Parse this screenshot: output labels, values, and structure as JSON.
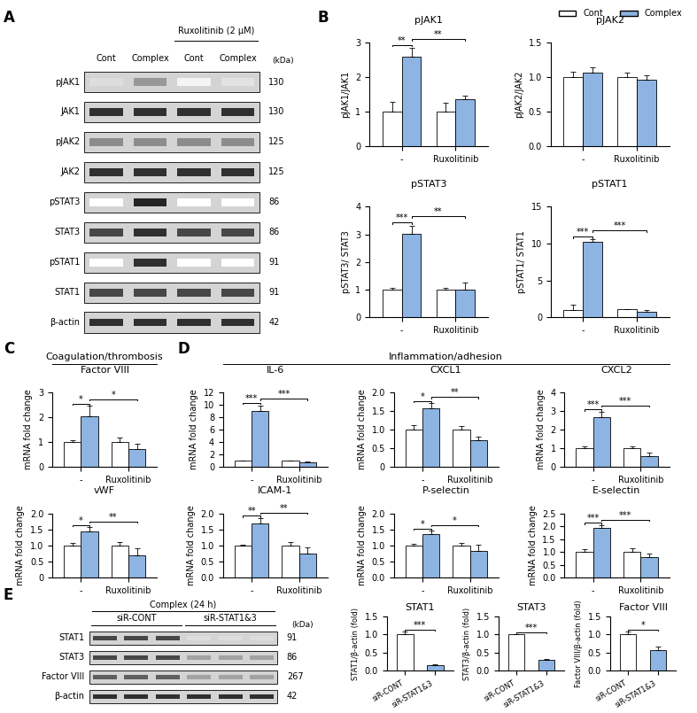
{
  "panel_labels": [
    "A",
    "B",
    "C",
    "D",
    "E"
  ],
  "section_headers": {
    "C": "Coagulation/thrombosis",
    "D": "Inflammation/adhesion"
  },
  "blots": [
    {
      "panel": "A",
      "lanes": [
        "Cont",
        "Complex",
        "Cont",
        "Complex"
      ],
      "lane_groups": [
        {
          "label": "Ruxolitinib (2 μM)",
          "lanes": [
            2,
            3
          ]
        }
      ],
      "unit": "(kDa)",
      "rows": [
        {
          "name": "pJAK1",
          "kDa": 130
        },
        {
          "name": "JAK1",
          "kDa": 130
        },
        {
          "name": "pJAK2",
          "kDa": 125
        },
        {
          "name": "JAK2",
          "kDa": 125
        },
        {
          "name": "pSTAT3",
          "kDa": 86
        },
        {
          "name": "STAT3",
          "kDa": 86
        },
        {
          "name": "pSTAT1",
          "kDa": 91
        },
        {
          "name": "STAT1",
          "kDa": 91
        },
        {
          "name": "β-actin",
          "kDa": 42
        }
      ]
    },
    {
      "panel": "E",
      "title": "Complex (24 h)",
      "lanes": [
        "",
        "",
        "",
        "",
        "",
        ""
      ],
      "lane_groups": [
        {
          "label": "siR-CONT",
          "lanes": [
            0,
            1,
            2
          ]
        },
        {
          "label": "siR-STAT1&3",
          "lanes": [
            3,
            4,
            5
          ]
        }
      ],
      "unit": "(kDa)",
      "rows": [
        {
          "name": "STAT1",
          "kDa": 91
        },
        {
          "name": "STAT3",
          "kDa": 86
        },
        {
          "name": "Factor VIII",
          "kDa": 267
        },
        {
          "name": "β-actin",
          "kDa": 42
        }
      ]
    }
  ],
  "chart_data": [
    {
      "type": "bar",
      "title": "pJAK1",
      "y_label": "pJAK1/JAK1",
      "categories": [
        "-",
        "Ruxolitinib"
      ],
      "series": [
        {
          "name": "Cont",
          "color": "#ffffff",
          "values": [
            1.0,
            1.0
          ],
          "errors": [
            0.28,
            0.25
          ]
        },
        {
          "name": "Complex",
          "color": "#8db4e2",
          "values": [
            2.6,
            1.35
          ],
          "errors": [
            0.25,
            0.12
          ]
        }
      ],
      "ylim": [
        0,
        3
      ],
      "yticks": [
        0,
        1,
        2,
        3
      ],
      "significance": [
        {
          "label": "**",
          "between": [
            [
              0,
              0
            ],
            [
              0,
              1
            ]
          ]
        },
        {
          "label": "**",
          "between": [
            [
              0,
              1
            ],
            [
              1,
              1
            ]
          ]
        }
      ]
    },
    {
      "type": "bar",
      "title": "pJAK2",
      "y_label": "pJAK2/JAK2",
      "categories": [
        "-",
        "Ruxolitinib"
      ],
      "series": [
        {
          "name": "Cont",
          "color": "#ffffff",
          "values": [
            1.0,
            1.0
          ],
          "errors": [
            0.08,
            0.07
          ]
        },
        {
          "name": "Complex",
          "color": "#8db4e2",
          "values": [
            1.07,
            0.96
          ],
          "errors": [
            0.08,
            0.07
          ]
        }
      ],
      "ylim": [
        0,
        1.5
      ],
      "yticks": [
        {
          "value": 0,
          "label": "0.0"
        },
        0.5,
        {
          "value": 1,
          "label": "1.0"
        },
        1.5
      ],
      "legend": "upper right"
    },
    {
      "type": "bar",
      "title": "pSTAT3",
      "y_label": "pSTAT3/ STAT3",
      "categories": [
        "-",
        "Ruxolitinib"
      ],
      "series": [
        {
          "name": "Cont",
          "color": "#ffffff",
          "values": [
            1.0,
            1.0
          ],
          "errors": [
            0.08,
            0.05
          ]
        },
        {
          "name": "Complex",
          "color": "#8db4e2",
          "values": [
            3.02,
            1.0
          ],
          "errors": [
            0.3,
            0.25
          ]
        }
      ],
      "ylim": [
        0,
        4
      ],
      "yticks": [
        0,
        1,
        2,
        3,
        4
      ],
      "significance": [
        {
          "label": "***",
          "between": [
            [
              0,
              0
            ],
            [
              0,
              1
            ]
          ]
        },
        {
          "label": "**",
          "between": [
            [
              0,
              1
            ],
            [
              1,
              1
            ]
          ]
        }
      ]
    },
    {
      "type": "bar",
      "title": "pSTAT1",
      "y_label": "pSTAT1/ STAT1",
      "categories": [
        "-",
        "Ruxolitinib"
      ],
      "series": [
        {
          "name": "Cont",
          "color": "#ffffff",
          "values": [
            1.0,
            1.05
          ],
          "errors": [
            0.7,
            0.1
          ]
        },
        {
          "name": "Complex",
          "color": "#8db4e2",
          "values": [
            10.3,
            0.8
          ],
          "errors": [
            0.25,
            0.2
          ]
        }
      ],
      "ylim": [
        0,
        15
      ],
      "yticks": [
        0,
        5,
        10,
        15
      ],
      "significance": [
        {
          "label": "***",
          "between": [
            [
              0,
              0
            ],
            [
              0,
              1
            ]
          ]
        },
        {
          "label": "***",
          "between": [
            [
              0,
              1
            ],
            [
              1,
              1
            ]
          ]
        }
      ]
    },
    {
      "type": "bar",
      "title": "Factor VIII",
      "y_label": "mRNA fold change",
      "categories": [
        "-",
        "Ruxolitinib"
      ],
      "series": [
        {
          "name": "Cont",
          "color": "#ffffff",
          "values": [
            1.0,
            1.0
          ],
          "errors": [
            0.08,
            0.18
          ]
        },
        {
          "name": "Complex",
          "color": "#8db4e2",
          "values": [
            2.05,
            0.72
          ],
          "errors": [
            0.4,
            0.2
          ]
        }
      ],
      "ylim": [
        0,
        3
      ],
      "yticks": [
        0,
        1,
        2,
        3
      ],
      "significance": [
        {
          "label": "*",
          "between": [
            [
              0,
              0
            ],
            [
              0,
              1
            ]
          ]
        },
        {
          "label": "*",
          "between": [
            [
              0,
              1
            ],
            [
              1,
              1
            ]
          ]
        }
      ]
    },
    {
      "type": "bar",
      "title": "vWF",
      "y_label": "mRNA fold change",
      "categories": [
        "-",
        "Ruxolitinib"
      ],
      "series": [
        {
          "name": "Cont",
          "color": "#ffffff",
          "values": [
            1.0,
            1.0
          ],
          "errors": [
            0.07,
            0.1
          ]
        },
        {
          "name": "Complex",
          "color": "#8db4e2",
          "values": [
            1.45,
            0.7
          ],
          "errors": [
            0.12,
            0.2
          ]
        }
      ],
      "ylim": [
        0,
        2
      ],
      "yticks": [
        0,
        0.5,
        {
          "value": 1,
          "label": "1.0"
        },
        1.5,
        {
          "value": 2,
          "label": "2.0"
        }
      ],
      "significance": [
        {
          "label": "*",
          "between": [
            [
              0,
              0
            ],
            [
              0,
              1
            ]
          ]
        },
        {
          "label": "**",
          "between": [
            [
              0,
              1
            ],
            [
              1,
              1
            ]
          ]
        }
      ]
    },
    {
      "type": "bar",
      "title": "IL-6",
      "y_label": "mRNA fold change",
      "categories": [
        "-",
        "Ruxolitinib"
      ],
      "series": [
        {
          "name": "Cont",
          "color": "#ffffff",
          "values": [
            1.0,
            1.0
          ],
          "errors": [
            0.05,
            0.1
          ]
        },
        {
          "name": "Complex",
          "color": "#8db4e2",
          "values": [
            9.0,
            0.75
          ],
          "errors": [
            0.9,
            0.1
          ]
        }
      ],
      "ylim": [
        0,
        12
      ],
      "yticks": [
        0,
        2,
        4,
        6,
        8,
        10,
        12
      ],
      "significance": [
        {
          "label": "***",
          "between": [
            [
              0,
              0
            ],
            [
              0,
              1
            ]
          ]
        },
        {
          "label": "***",
          "between": [
            [
              0,
              1
            ],
            [
              1,
              1
            ]
          ]
        }
      ]
    },
    {
      "type": "bar",
      "title": "CXCL1",
      "y_label": "mRNA fold change",
      "categories": [
        "-",
        "Ruxolitinib"
      ],
      "series": [
        {
          "name": "Cont",
          "color": "#ffffff",
          "values": [
            1.0,
            1.0
          ],
          "errors": [
            0.12,
            0.1
          ]
        },
        {
          "name": "Complex",
          "color": "#8db4e2",
          "values": [
            1.58,
            0.72
          ],
          "errors": [
            0.12,
            0.08
          ]
        }
      ],
      "ylim": [
        0,
        2
      ],
      "yticks": [
        0,
        0.5,
        {
          "value": 1,
          "label": "1.0"
        },
        1.5,
        {
          "value": 2,
          "label": "2.0"
        }
      ],
      "significance": [
        {
          "label": "*",
          "between": [
            [
              0,
              0
            ],
            [
              0,
              1
            ]
          ]
        },
        {
          "label": "**",
          "between": [
            [
              0,
              1
            ],
            [
              1,
              1
            ]
          ]
        }
      ]
    },
    {
      "type": "bar",
      "title": "CXCL2",
      "y_label": "mRNA fold change",
      "categories": [
        "-",
        "Ruxolitinib"
      ],
      "series": [
        {
          "name": "Cont",
          "color": "#ffffff",
          "values": [
            1.0,
            1.0
          ],
          "errors": [
            0.1,
            0.08
          ]
        },
        {
          "name": "Complex",
          "color": "#8db4e2",
          "values": [
            2.65,
            0.6
          ],
          "errors": [
            0.3,
            0.15
          ]
        }
      ],
      "ylim": [
        0,
        4
      ],
      "yticks": [
        0,
        1,
        2,
        3,
        4
      ],
      "significance": [
        {
          "label": "***",
          "between": [
            [
              0,
              0
            ],
            [
              0,
              1
            ]
          ]
        },
        {
          "label": "***",
          "between": [
            [
              0,
              1
            ],
            [
              1,
              1
            ]
          ]
        }
      ]
    },
    {
      "type": "bar",
      "title": "ICAM-1",
      "y_label": "mRNA fold change",
      "categories": [
        "-",
        "Ruxolitinib"
      ],
      "series": [
        {
          "name": "Cont",
          "color": "#ffffff",
          "values": [
            1.0,
            1.0
          ],
          "errors": [
            0.03,
            0.1
          ]
        },
        {
          "name": "Complex",
          "color": "#8db4e2",
          "values": [
            1.68,
            0.75
          ],
          "errors": [
            0.18,
            0.2
          ]
        }
      ],
      "ylim": [
        0,
        2
      ],
      "yticks": [
        {
          "value": 0,
          "label": "0.0"
        },
        0.5,
        {
          "value": 1,
          "label": "1.0"
        },
        1.5,
        {
          "value": 2,
          "label": "2.0"
        }
      ],
      "significance": [
        {
          "label": "**",
          "between": [
            [
              0,
              0
            ],
            [
              0,
              1
            ]
          ]
        },
        {
          "label": "**",
          "between": [
            [
              0,
              1
            ],
            [
              1,
              1
            ]
          ]
        }
      ]
    },
    {
      "type": "bar",
      "title": "P-selectin",
      "y_label": "mRNA fold change",
      "categories": [
        "-",
        "Ruxolitinib"
      ],
      "series": [
        {
          "name": "Cont",
          "color": "#ffffff",
          "values": [
            1.0,
            1.0
          ],
          "errors": [
            0.05,
            0.08
          ]
        },
        {
          "name": "Complex",
          "color": "#8db4e2",
          "values": [
            1.35,
            0.83
          ],
          "errors": [
            0.12,
            0.18
          ]
        }
      ],
      "ylim": [
        0,
        2
      ],
      "yticks": [
        {
          "value": 0,
          "label": "0.0"
        },
        0.5,
        {
          "value": 1,
          "label": "1.0"
        },
        1.5,
        {
          "value": 2,
          "label": "2.0"
        }
      ],
      "significance": [
        {
          "label": "*",
          "between": [
            [
              0,
              0
            ],
            [
              0,
              1
            ]
          ]
        },
        {
          "label": "*",
          "between": [
            [
              0,
              1
            ],
            [
              1,
              1
            ]
          ]
        }
      ]
    },
    {
      "type": "bar",
      "title": "E-selectin",
      "y_label": "mRNA fold change",
      "categories": [
        "-",
        "Ruxolitinib"
      ],
      "series": [
        {
          "name": "Cont",
          "color": "#ffffff",
          "values": [
            1.0,
            1.0
          ],
          "errors": [
            0.12,
            0.15
          ]
        },
        {
          "name": "Complex",
          "color": "#8db4e2",
          "values": [
            1.93,
            0.78
          ],
          "errors": [
            0.12,
            0.15
          ]
        }
      ],
      "ylim": [
        0,
        2.5
      ],
      "yticks": [
        {
          "value": 0,
          "label": "0.0"
        },
        0.5,
        {
          "value": 1,
          "label": "1.0"
        },
        1.5,
        {
          "value": 2,
          "label": "2.0"
        },
        2.5
      ],
      "significance": [
        {
          "label": "***",
          "between": [
            [
              0,
              0
            ],
            [
              0,
              1
            ]
          ]
        },
        {
          "label": "***",
          "between": [
            [
              0,
              1
            ],
            [
              1,
              1
            ]
          ]
        }
      ]
    },
    {
      "type": "bar",
      "title": "STAT1",
      "y_label": "STAT1/β-actin (fold)",
      "categories": [
        "siR-CONT",
        "siR-STAT1&3"
      ],
      "series": [
        {
          "colors": [
            "#ffffff",
            "#8db4e2"
          ],
          "values": [
            1.0,
            0.15
          ],
          "errors": [
            0.08,
            0.01
          ]
        }
      ],
      "ylim": [
        0,
        1.5
      ],
      "yticks": [
        {
          "value": 0,
          "label": "0.0"
        },
        0.5,
        {
          "value": 1,
          "label": "1.0"
        },
        1.5
      ],
      "significance": [
        {
          "label": "***",
          "between": [
            [
              0,
              0
            ],
            [
              1,
              0
            ]
          ]
        }
      ]
    },
    {
      "type": "bar",
      "title": "STAT3",
      "y_label": "STAT3/β-actin (fold)",
      "categories": [
        "siR-CONT",
        "siR-STAT1&3"
      ],
      "series": [
        {
          "colors": [
            "#ffffff",
            "#8db4e2"
          ],
          "values": [
            1.0,
            0.3
          ],
          "errors": [
            0.02,
            0.01
          ]
        }
      ],
      "ylim": [
        0,
        1.5
      ],
      "yticks": [
        {
          "value": 0,
          "label": "0.0"
        },
        0.5,
        {
          "value": 1,
          "label": "1.0"
        },
        1.5
      ],
      "significance": [
        {
          "label": "***",
          "between": [
            [
              0,
              0
            ],
            [
              1,
              0
            ]
          ]
        }
      ]
    },
    {
      "type": "bar",
      "title": "Factor VIII",
      "y_label": "Factor VIII/β-actin (fold)",
      "categories": [
        "siR-CONT",
        "siR-STAT1&3"
      ],
      "series": [
        {
          "colors": [
            "#ffffff",
            "#8db4e2"
          ],
          "values": [
            1.0,
            0.57
          ],
          "errors": [
            0.08,
            0.1
          ]
        }
      ],
      "ylim": [
        0,
        1.5
      ],
      "yticks": [
        {
          "value": 0,
          "label": "0.0"
        },
        0.5,
        {
          "value": 1,
          "label": "1.0"
        },
        1.5
      ],
      "significance": [
        {
          "label": "*",
          "between": [
            [
              0,
              0
            ],
            [
              1,
              0
            ]
          ]
        }
      ]
    }
  ]
}
